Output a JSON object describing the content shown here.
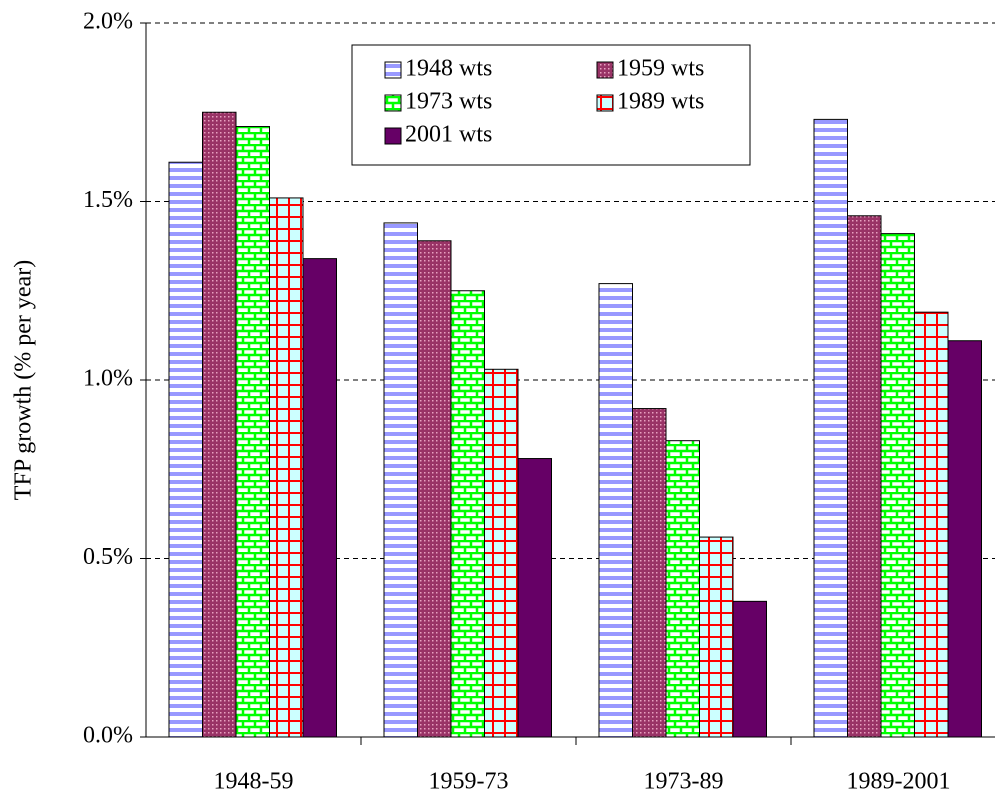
{
  "chart_data": {
    "type": "bar",
    "y_label": "TFP growth (% per year)",
    "categories": [
      "1948-59",
      "1959-73",
      "1973-89",
      "1989-2001"
    ],
    "series": [
      {
        "name": "1948 wts",
        "color": "#9999ff",
        "values": [
          1.61,
          1.44,
          1.27,
          1.73
        ]
      },
      {
        "name": "1959 wts",
        "color": "#993366",
        "values": [
          1.75,
          1.39,
          0.92,
          1.46
        ]
      },
      {
        "name": "1973 wts",
        "color": "#00ff00",
        "values": [
          1.71,
          1.25,
          0.83,
          1.41
        ]
      },
      {
        "name": "1989 wts",
        "color": "#ff0000",
        "values": [
          1.51,
          1.03,
          0.56,
          1.19
        ]
      },
      {
        "name": "2001 wts",
        "color": "#660066",
        "values": [
          1.34,
          0.78,
          0.38,
          1.11
        ]
      }
    ],
    "ylim": [
      0,
      2
    ],
    "yticks": [
      {
        "value": 0,
        "label": "0.0%"
      },
      {
        "value": 0.5,
        "label": "0.5%"
      },
      {
        "value": 1,
        "label": "1.0%"
      },
      {
        "value": 1.5,
        "label": "1.5%"
      },
      {
        "value": 2,
        "label": "2.0%"
      }
    ],
    "grid": true
  }
}
